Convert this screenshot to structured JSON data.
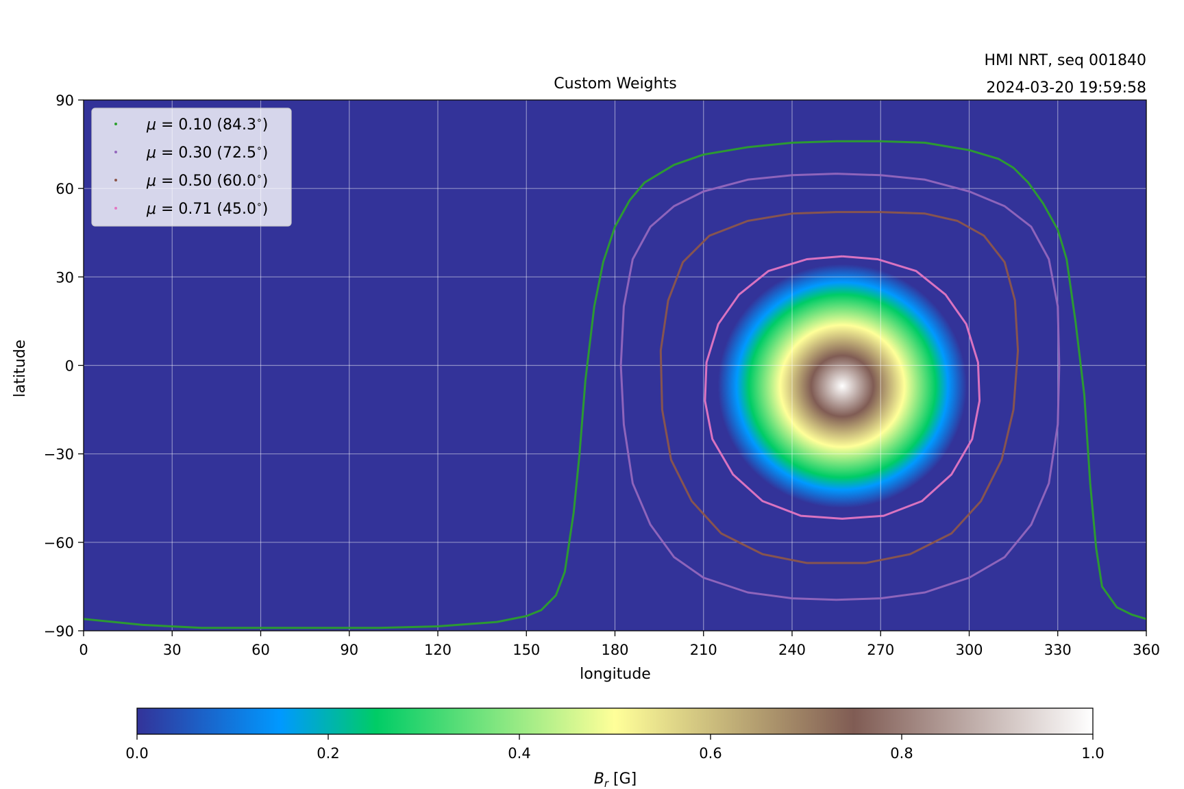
{
  "chart_data": {
    "type": "heatmap",
    "title": "Custom Weights",
    "corner_text": [
      "HMI NRT, seq 001840",
      "2024-03-20 19:59:58"
    ],
    "xlabel": "longitude",
    "ylabel": "latitude",
    "xlim": [
      0,
      360
    ],
    "ylim": [
      -90,
      90
    ],
    "xticks": [
      0,
      30,
      60,
      90,
      120,
      150,
      180,
      210,
      240,
      270,
      300,
      330,
      360
    ],
    "yticks": [
      -90,
      -60,
      -30,
      0,
      30,
      60,
      90
    ],
    "xtick_labels": [
      "0",
      "30",
      "60",
      "90",
      "120",
      "150",
      "180",
      "210",
      "240",
      "270",
      "300",
      "330",
      "360"
    ],
    "ytick_labels": [
      "−90",
      "−60",
      "−30",
      "0",
      "30",
      "60",
      "90"
    ],
    "grid": true,
    "legend_position": "top-left",
    "colormap": "terrain",
    "colormap_stops": [
      [
        0.0,
        "#333399"
      ],
      [
        0.15,
        "#0099ff"
      ],
      [
        0.25,
        "#00cc66"
      ],
      [
        0.5,
        "#ffff99"
      ],
      [
        0.75,
        "#805c54"
      ],
      [
        1.0,
        "#ffffff"
      ]
    ],
    "field_center": {
      "longitude": 257,
      "latitude": -7
    },
    "colorbar": {
      "label_main": "B",
      "label_sub": "r",
      "label_unit": " [G]",
      "range": [
        0,
        1
      ],
      "ticks": [
        0.0,
        0.2,
        0.4,
        0.6,
        0.8,
        1.0
      ],
      "tick_labels": [
        "0.0",
        "0.2",
        "0.4",
        "0.6",
        "0.8",
        "1.0"
      ]
    },
    "series": [
      {
        "mu_value": "0.10",
        "angle": "84.3",
        "color": "#2ca02c",
        "x": [
          0,
          20,
          40,
          60,
          80,
          100,
          120,
          140,
          150,
          155,
          160,
          163,
          166,
          168,
          170,
          173,
          176,
          180,
          185,
          190,
          200,
          210,
          225,
          240,
          255,
          270,
          285,
          300,
          310,
          315,
          320,
          325,
          330,
          333,
          336,
          339,
          341,
          343,
          345,
          350,
          355,
          360
        ],
        "y": [
          -86,
          -88,
          -89,
          -89,
          -89,
          -89,
          -88.5,
          -87,
          -85,
          -83,
          -78,
          -70,
          -50,
          -30,
          -5,
          20,
          35,
          47,
          56,
          62,
          68,
          71.5,
          74,
          75.5,
          76,
          76,
          75.5,
          73,
          70,
          67,
          62,
          55,
          46,
          36,
          15,
          -10,
          -40,
          -62,
          -75,
          -82,
          -84.5,
          -86
        ]
      },
      {
        "mu_value": "0.30",
        "angle": "72.5",
        "color": "#9467bd",
        "x": [
          255,
          240,
          225,
          210,
          200,
          192,
          186,
          183,
          182,
          183,
          186,
          192,
          200,
          210,
          225,
          240,
          255,
          270,
          285,
          300,
          312,
          321,
          327,
          330,
          330.5,
          330,
          327,
          321,
          312,
          300,
          285,
          270,
          255
        ],
        "y": [
          65,
          64.5,
          63,
          59,
          54,
          47,
          36,
          20,
          0,
          -20,
          -40,
          -54,
          -65,
          -72,
          -77,
          -79,
          -79.5,
          -79,
          -77,
          -72,
          -65,
          -54,
          -40,
          -20,
          0,
          20,
          36,
          47,
          54,
          59,
          63,
          64.5,
          65
        ]
      },
      {
        "mu_value": "0.50",
        "angle": "60.0",
        "color": "#8c564b",
        "x": [
          255,
          240,
          225,
          212,
          203,
          198,
          195.5,
          196,
          199,
          206,
          216,
          230,
          245,
          255,
          265,
          280,
          294,
          304,
          311,
          315,
          316.5,
          315.5,
          312,
          305,
          296,
          285,
          270,
          255
        ],
        "y": [
          52,
          51.5,
          49,
          44,
          35,
          22,
          5,
          -15,
          -32,
          -46,
          -57,
          -64,
          -67,
          -67,
          -67,
          -64,
          -57,
          -46,
          -32,
          -15,
          5,
          22,
          35,
          44,
          49,
          51.5,
          52,
          52
        ]
      },
      {
        "mu_value": "0.71",
        "angle": "45.0",
        "color": "#e377c2",
        "x": [
          257,
          245,
          232,
          222,
          215,
          211,
          210.5,
          213,
          220,
          230,
          243,
          257,
          271,
          284,
          294,
          301,
          303.5,
          303,
          299,
          292,
          282,
          269,
          257
        ],
        "y": [
          37,
          36,
          32,
          24,
          14,
          1,
          -12,
          -25,
          -37,
          -46,
          -51,
          -52,
          -51,
          -46,
          -37,
          -25,
          -12,
          1,
          14,
          24,
          32,
          36,
          37
        ]
      }
    ]
  }
}
